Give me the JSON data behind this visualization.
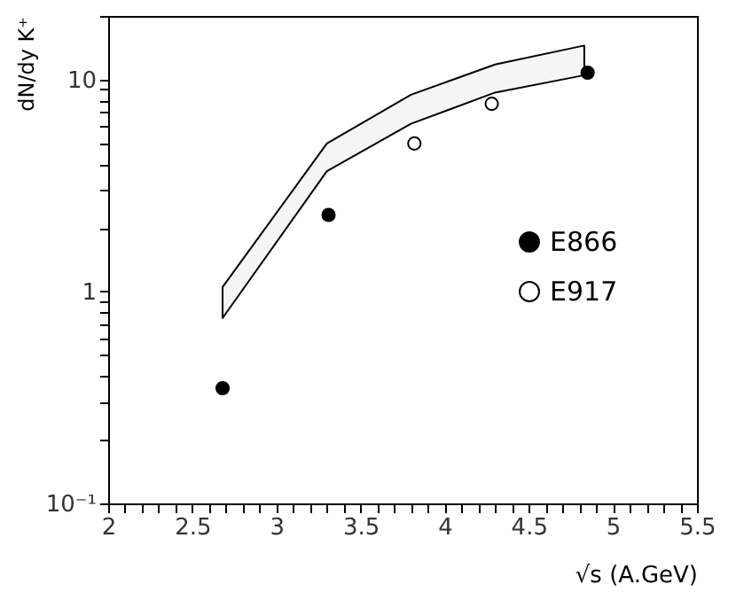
{
  "chart_data": {
    "type": "scatter",
    "xlabel": "√s (A.GeV)",
    "ylabel": "dN/dy K⁺",
    "log": "y",
    "xlim": [
      2,
      5.5
    ],
    "ylim": [
      0.1,
      20
    ],
    "xticks": [
      2,
      {
        "value": 2.1,
        "label": null
      },
      {
        "value": 2.2,
        "label": null
      },
      {
        "value": 2.3,
        "label": null
      },
      {
        "value": 2.4,
        "label": null
      },
      2.5,
      {
        "value": 2.6,
        "label": null
      },
      {
        "value": 2.7,
        "label": null
      },
      {
        "value": 2.8,
        "label": null
      },
      {
        "value": 2.9,
        "label": null
      },
      3,
      {
        "value": 3.1,
        "label": null
      },
      {
        "value": 3.2,
        "label": null
      },
      {
        "value": 3.3,
        "label": null
      },
      {
        "value": 3.4,
        "label": null
      },
      3.5,
      {
        "value": 3.6,
        "label": null
      },
      {
        "value": 3.7,
        "label": null
      },
      {
        "value": 3.8,
        "label": null
      },
      {
        "value": 3.9,
        "label": null
      },
      4,
      {
        "value": 4.1,
        "label": null
      },
      {
        "value": 4.2,
        "label": null
      },
      {
        "value": 4.3,
        "label": null
      },
      {
        "value": 4.4,
        "label": null
      },
      4.5,
      {
        "value": 4.6,
        "label": null
      },
      {
        "value": 4.7,
        "label": null
      },
      {
        "value": 4.8,
        "label": null
      },
      {
        "value": 4.9,
        "label": null
      },
      5,
      {
        "value": 5.1,
        "label": null
      },
      {
        "value": 5.2,
        "label": null
      },
      {
        "value": 5.3,
        "label": null
      },
      {
        "value": 5.4,
        "label": null
      },
      5.5
    ],
    "yticks": [
      {
        "value": 0.1,
        "label": "10⁻¹"
      },
      {
        "value": 0.2,
        "label": null
      },
      {
        "value": 0.3,
        "label": null
      },
      {
        "value": 0.4,
        "label": null
      },
      {
        "value": 0.5,
        "label": null
      },
      {
        "value": 0.6,
        "label": null
      },
      {
        "value": 0.7,
        "label": null
      },
      {
        "value": 0.8,
        "label": null
      },
      {
        "value": 0.9,
        "label": null
      },
      1,
      {
        "value": 2,
        "label": null
      },
      {
        "value": 3,
        "label": null
      },
      {
        "value": 4,
        "label": null
      },
      {
        "value": 5,
        "label": null
      },
      {
        "value": 6,
        "label": null
      },
      {
        "value": 7,
        "label": null
      },
      {
        "value": 8,
        "label": null
      },
      {
        "value": 9,
        "label": null
      },
      10,
      {
        "value": 20,
        "label": null
      }
    ],
    "grid": false,
    "legend": "right",
    "series": [
      {
        "name": "E866",
        "color": "#000000",
        "x": [
          2.68,
          3.31,
          4.85
        ],
        "values": [
          0.35,
          2.3,
          10.8
        ],
        "marker": "circle"
      },
      {
        "name": "E917",
        "color": "#ffffff",
        "x": [
          3.82,
          4.28
        ],
        "values": [
          5.0,
          7.7
        ],
        "marker": "circle"
      },
      {
        "type": "area",
        "color": "#000000",
        "x": [
          2.68,
          3.3,
          3.8,
          4.3,
          4.83
        ],
        "values": [
          null,
          null,
          null,
          null,
          null
        ],
        "lower": [
          0.75,
          3.7,
          6.2,
          8.7,
          10.5
        ],
        "upper": [
          1.05,
          5.0,
          8.5,
          11.8,
          14.5
        ]
      }
    ]
  }
}
